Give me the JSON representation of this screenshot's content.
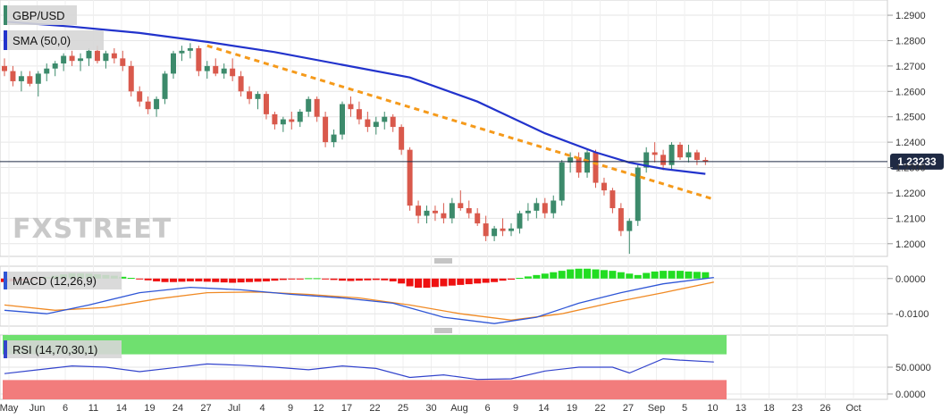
{
  "panels": {
    "price_label": "GBP/USD",
    "sma_label": "SMA (50,0)",
    "macd_label": "MACD (12,26,9)",
    "rsi_label": "RSI (14,70,30,1)",
    "last_price": "1.23233",
    "watermark": "FXSTREET"
  },
  "colors": {
    "bull": "#3c8a6b",
    "bear": "#d9594c",
    "sma": "#2233cc",
    "trendline": "#f59a1b",
    "macd_line": "#2f56d6",
    "signal_line": "#f08a24",
    "hist_pos": "#22dd22",
    "hist_neg": "#ee1111",
    "rsi_line": "#3344cc",
    "rsi_over": "#6fe06f",
    "rsi_under": "#f27c7c",
    "price_badge": "#1f2a44"
  },
  "chart_data": [
    {
      "type": "candlestick",
      "panel": "price",
      "y_ticks": [
        "1.2000",
        "1.2100",
        "1.2200",
        "1.2300",
        "1.2400",
        "1.2500",
        "1.2600",
        "1.2700",
        "1.2800",
        "1.2900"
      ],
      "ylim": [
        1.195,
        1.296
      ],
      "x_ticks": [
        "May",
        "Jun",
        "6",
        "11",
        "14",
        "19",
        "24",
        "27",
        "Jul",
        "4",
        "9",
        "12",
        "17",
        "22",
        "25",
        "30",
        "Aug",
        "6",
        "9",
        "14",
        "19",
        "22",
        "27",
        "Sep",
        "5",
        "10",
        "13",
        "18",
        "23",
        "26",
        "Oct"
      ],
      "candles": [
        [
          1.27,
          1.273,
          1.266,
          1.268
        ],
        [
          1.268,
          1.27,
          1.262,
          1.264
        ],
        [
          1.264,
          1.268,
          1.26,
          1.266
        ],
        [
          1.266,
          1.268,
          1.262,
          1.263
        ],
        [
          1.263,
          1.268,
          1.258,
          1.267
        ],
        [
          1.267,
          1.271,
          1.264,
          1.269
        ],
        [
          1.269,
          1.272,
          1.266,
          1.271
        ],
        [
          1.271,
          1.275,
          1.268,
          1.274
        ],
        [
          1.274,
          1.276,
          1.27,
          1.272
        ],
        [
          1.272,
          1.275,
          1.268,
          1.273
        ],
        [
          1.273,
          1.277,
          1.27,
          1.276
        ],
        [
          1.276,
          1.278,
          1.271,
          1.272
        ],
        [
          1.272,
          1.276,
          1.269,
          1.275
        ],
        [
          1.275,
          1.277,
          1.271,
          1.273
        ],
        [
          1.273,
          1.276,
          1.268,
          1.27
        ],
        [
          1.27,
          1.272,
          1.258,
          1.26
        ],
        [
          1.26,
          1.262,
          1.254,
          1.256
        ],
        [
          1.256,
          1.258,
          1.251,
          1.253
        ],
        [
          1.253,
          1.258,
          1.25,
          1.257
        ],
        [
          1.257,
          1.268,
          1.255,
          1.267
        ],
        [
          1.267,
          1.276,
          1.265,
          1.275
        ],
        [
          1.275,
          1.278,
          1.272,
          1.276
        ],
        [
          1.276,
          1.279,
          1.273,
          1.277
        ],
        [
          1.277,
          1.278,
          1.266,
          1.268
        ],
        [
          1.268,
          1.272,
          1.265,
          1.27
        ],
        [
          1.27,
          1.273,
          1.266,
          1.267
        ],
        [
          1.267,
          1.271,
          1.265,
          1.269
        ],
        [
          1.269,
          1.273,
          1.264,
          1.266
        ],
        [
          1.266,
          1.268,
          1.258,
          1.26
        ],
        [
          1.26,
          1.262,
          1.255,
          1.257
        ],
        [
          1.257,
          1.26,
          1.253,
          1.259
        ],
        [
          1.259,
          1.26,
          1.249,
          1.251
        ],
        [
          1.251,
          1.252,
          1.245,
          1.247
        ],
        [
          1.247,
          1.25,
          1.244,
          1.249
        ],
        [
          1.249,
          1.252,
          1.245,
          1.248
        ],
        [
          1.248,
          1.253,
          1.246,
          1.252
        ],
        [
          1.252,
          1.258,
          1.25,
          1.257
        ],
        [
          1.257,
          1.258,
          1.248,
          1.25
        ],
        [
          1.25,
          1.252,
          1.238,
          1.24
        ],
        [
          1.24,
          1.245,
          1.238,
          1.243
        ],
        [
          1.243,
          1.256,
          1.241,
          1.255
        ],
        [
          1.255,
          1.258,
          1.25,
          1.253
        ],
        [
          1.253,
          1.256,
          1.247,
          1.249
        ],
        [
          1.249,
          1.252,
          1.244,
          1.246
        ],
        [
          1.246,
          1.25,
          1.243,
          1.248
        ],
        [
          1.248,
          1.252,
          1.245,
          1.25
        ],
        [
          1.25,
          1.251,
          1.244,
          1.246
        ],
        [
          1.246,
          1.247,
          1.235,
          1.237
        ],
        [
          1.237,
          1.238,
          1.213,
          1.215
        ],
        [
          1.215,
          1.217,
          1.208,
          1.211
        ],
        [
          1.211,
          1.215,
          1.208,
          1.213
        ],
        [
          1.213,
          1.215,
          1.209,
          1.212
        ],
        [
          1.212,
          1.216,
          1.208,
          1.21
        ],
        [
          1.21,
          1.218,
          1.208,
          1.216
        ],
        [
          1.216,
          1.221,
          1.213,
          1.214
        ],
        [
          1.214,
          1.217,
          1.21,
          1.212
        ],
        [
          1.212,
          1.214,
          1.207,
          1.208
        ],
        [
          1.208,
          1.211,
          1.201,
          1.203
        ],
        [
          1.203,
          1.207,
          1.201,
          1.206
        ],
        [
          1.206,
          1.21,
          1.203,
          1.205
        ],
        [
          1.205,
          1.208,
          1.203,
          1.206
        ],
        [
          1.206,
          1.213,
          1.204,
          1.212
        ],
        [
          1.212,
          1.216,
          1.209,
          1.213
        ],
        [
          1.213,
          1.218,
          1.21,
          1.216
        ],
        [
          1.216,
          1.218,
          1.21,
          1.212
        ],
        [
          1.212,
          1.219,
          1.21,
          1.217
        ],
        [
          1.217,
          1.233,
          1.215,
          1.232
        ],
        [
          1.232,
          1.236,
          1.228,
          1.234
        ],
        [
          1.234,
          1.236,
          1.226,
          1.228
        ],
        [
          1.228,
          1.237,
          1.226,
          1.236
        ],
        [
          1.236,
          1.237,
          1.222,
          1.224
        ],
        [
          1.224,
          1.226,
          1.219,
          1.221
        ],
        [
          1.221,
          1.222,
          1.212,
          1.214
        ],
        [
          1.214,
          1.216,
          1.203,
          1.205
        ],
        [
          1.205,
          1.21,
          1.196,
          1.209
        ],
        [
          1.209,
          1.231,
          1.207,
          1.23
        ],
        [
          1.23,
          1.238,
          1.228,
          1.236
        ],
        [
          1.236,
          1.24,
          1.232,
          1.235
        ],
        [
          1.235,
          1.237,
          1.229,
          1.231
        ],
        [
          1.231,
          1.24,
          1.229,
          1.239
        ],
        [
          1.239,
          1.24,
          1.233,
          1.234
        ],
        [
          1.234,
          1.239,
          1.232,
          1.236
        ],
        [
          1.236,
          1.237,
          1.231,
          1.233
        ],
        [
          1.233,
          1.234,
          1.231,
          1.2323
        ]
      ],
      "sma": [
        [
          0,
          1.2875
        ],
        [
          8,
          1.2855
        ],
        [
          16,
          1.283
        ],
        [
          24,
          1.2795
        ],
        [
          32,
          1.2755
        ],
        [
          40,
          1.2705
        ],
        [
          48,
          1.2655
        ],
        [
          56,
          1.256
        ],
        [
          64,
          1.2435
        ],
        [
          70,
          1.236
        ],
        [
          74,
          1.232
        ],
        [
          78,
          1.2295
        ],
        [
          83,
          1.2275
        ]
      ],
      "trendline": [
        [
          24,
          1.278
        ],
        [
          84,
          1.2175
        ]
      ]
    },
    {
      "type": "line",
      "panel": "macd",
      "y_ticks": [
        "0.0000",
        "-0.0100"
      ],
      "ylim": [
        -0.0135,
        0.0035
      ],
      "macd": [
        [
          0,
          -0.009
        ],
        [
          5,
          -0.01
        ],
        [
          10,
          -0.0075
        ],
        [
          16,
          -0.004
        ],
        [
          22,
          -0.0025
        ],
        [
          28,
          -0.0032
        ],
        [
          34,
          -0.0045
        ],
        [
          40,
          -0.0055
        ],
        [
          46,
          -0.007
        ],
        [
          52,
          -0.011
        ],
        [
          58,
          -0.0128
        ],
        [
          63,
          -0.011
        ],
        [
          68,
          -0.007
        ],
        [
          73,
          -0.004
        ],
        [
          78,
          -0.0015
        ],
        [
          84,
          0.0003
        ]
      ],
      "signal": [
        [
          0,
          -0.0075
        ],
        [
          6,
          -0.009
        ],
        [
          12,
          -0.0082
        ],
        [
          18,
          -0.0058
        ],
        [
          24,
          -0.004
        ],
        [
          30,
          -0.0038
        ],
        [
          36,
          -0.0045
        ],
        [
          42,
          -0.0055
        ],
        [
          48,
          -0.0075
        ],
        [
          54,
          -0.01
        ],
        [
          60,
          -0.0118
        ],
        [
          66,
          -0.01
        ],
        [
          72,
          -0.0068
        ],
        [
          78,
          -0.004
        ],
        [
          84,
          -0.001
        ]
      ],
      "histogram": [
        -0.001,
        -0.0008,
        -0.0006,
        -0.0004,
        -0.0002,
        0.0004,
        0.0008,
        0.0012,
        0.0015,
        0.0015,
        0.0014,
        0.0012,
        0.001,
        0.0008,
        0.0005,
        0.0002,
        -0.0002,
        -0.0005,
        -0.0008,
        -0.001,
        -0.001,
        -0.0009,
        -0.0008,
        -0.0008,
        -0.0009,
        -0.001,
        -0.0011,
        -0.0012,
        -0.0011,
        -0.001,
        -0.0009,
        -0.0008,
        -0.0006,
        -0.0004,
        -0.0002,
        -0.0001,
        0.0001,
        0.0001,
        -0.0002,
        -0.0004,
        -0.0006,
        -0.0007,
        -0.0006,
        -0.0005,
        -0.0004,
        -0.0005,
        -0.0008,
        -0.0014,
        -0.0022,
        -0.0026,
        -0.0026,
        -0.0024,
        -0.0022,
        -0.002,
        -0.0018,
        -0.0016,
        -0.0014,
        -0.0012,
        -0.001,
        -0.0006,
        -0.0003,
        0.0002,
        0.0006,
        0.001,
        0.0014,
        0.0018,
        0.0022,
        0.0026,
        0.0028,
        0.0028,
        0.0026,
        0.0024,
        0.0022,
        0.0018,
        0.0014,
        0.001,
        0.0016,
        0.002,
        0.0022,
        0.0022,
        0.0022,
        0.002,
        0.0019,
        0.0018
      ]
    },
    {
      "type": "line",
      "panel": "rsi",
      "y_ticks": [
        "50.0000",
        "0.0000"
      ],
      "ylim": [
        0,
        100
      ],
      "levels": [
        70,
        30
      ],
      "rsi": [
        [
          0,
          40
        ],
        [
          4,
          46
        ],
        [
          8,
          52
        ],
        [
          12,
          50
        ],
        [
          16,
          43
        ],
        [
          20,
          49
        ],
        [
          24,
          55
        ],
        [
          28,
          53
        ],
        [
          32,
          50
        ],
        [
          36,
          46
        ],
        [
          40,
          52
        ],
        [
          44,
          48
        ],
        [
          48,
          34
        ],
        [
          52,
          38
        ],
        [
          56,
          31
        ],
        [
          60,
          32
        ],
        [
          64,
          44
        ],
        [
          68,
          50
        ],
        [
          72,
          50
        ],
        [
          74,
          41
        ],
        [
          78,
          63
        ],
        [
          80,
          61
        ],
        [
          84,
          58
        ]
      ]
    }
  ]
}
